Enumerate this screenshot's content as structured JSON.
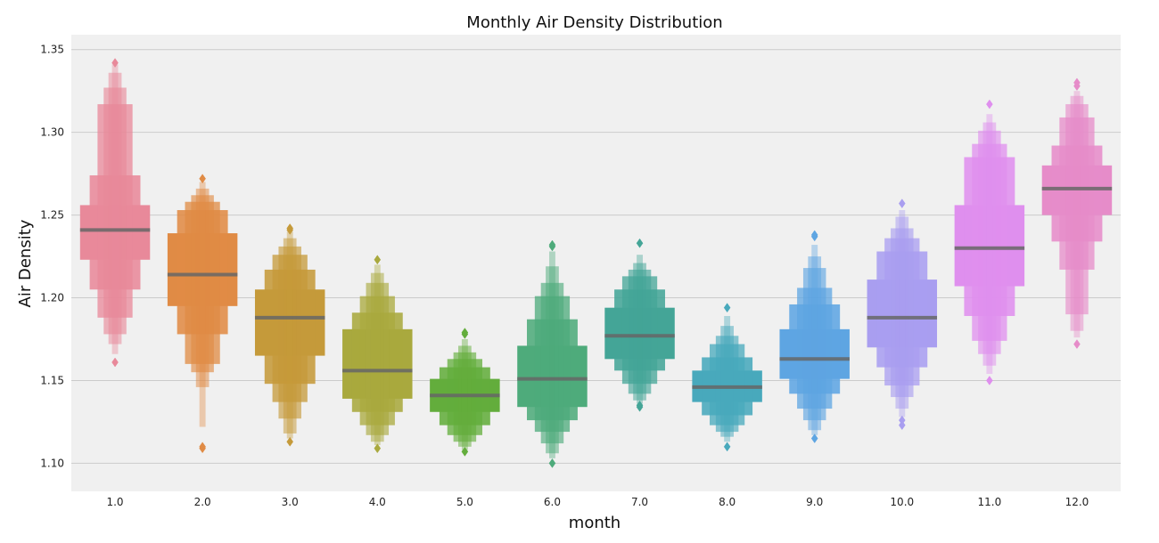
{
  "chart_data": {
    "type": "boxen",
    "title": "Monthly Air Density Distribution",
    "xlabel": "month",
    "ylabel": "Air Density",
    "ylim": [
      1.083,
      1.359
    ],
    "yticks": [
      1.1,
      1.15,
      1.2,
      1.25,
      1.3,
      1.35
    ],
    "ytick_labels": [
      "1.10",
      "1.15",
      "1.20",
      "1.25",
      "1.30",
      "1.35"
    ],
    "grid": true,
    "background": "#f0f0f0",
    "median_color": "#666666",
    "categories": [
      "1.0",
      "2.0",
      "3.0",
      "4.0",
      "5.0",
      "6.0",
      "7.0",
      "8.0",
      "9.0",
      "10.0",
      "11.0",
      "12.0"
    ],
    "series": [
      {
        "category": "1.0",
        "color": "#e8899a",
        "median": 1.241,
        "levels": [
          [
            1.223,
            1.256
          ],
          [
            1.205,
            1.274
          ],
          [
            1.188,
            1.317
          ],
          [
            1.178,
            1.327
          ],
          [
            1.172,
            1.336
          ],
          [
            1.166,
            1.341
          ]
        ],
        "outliers": [
          1.161,
          1.342
        ]
      },
      {
        "category": "2.0",
        "color": "#e08b45",
        "median": 1.214,
        "levels": [
          [
            1.195,
            1.239
          ],
          [
            1.178,
            1.253
          ],
          [
            1.16,
            1.258
          ],
          [
            1.155,
            1.262
          ],
          [
            1.146,
            1.266
          ],
          [
            1.122,
            1.27
          ]
        ],
        "outliers": [
          1.109,
          1.11,
          1.272
        ]
      },
      {
        "category": "3.0",
        "color": "#c59a3a",
        "median": 1.188,
        "levels": [
          [
            1.165,
            1.205
          ],
          [
            1.148,
            1.217
          ],
          [
            1.137,
            1.226
          ],
          [
            1.127,
            1.231
          ],
          [
            1.118,
            1.236
          ],
          [
            1.115,
            1.24
          ]
        ],
        "outliers": [
          1.113,
          1.241,
          1.242
        ]
      },
      {
        "category": "4.0",
        "color": "#a9a93e",
        "median": 1.156,
        "levels": [
          [
            1.139,
            1.181
          ],
          [
            1.131,
            1.191
          ],
          [
            1.123,
            1.201
          ],
          [
            1.117,
            1.209
          ],
          [
            1.113,
            1.215
          ],
          [
            1.111,
            1.22
          ]
        ],
        "outliers": [
          1.109,
          1.223
        ]
      },
      {
        "category": "5.0",
        "color": "#63ad3c",
        "median": 1.141,
        "levels": [
          [
            1.131,
            1.151
          ],
          [
            1.123,
            1.158
          ],
          [
            1.117,
            1.163
          ],
          [
            1.113,
            1.167
          ],
          [
            1.11,
            1.171
          ],
          [
            1.108,
            1.175
          ]
        ],
        "outliers": [
          1.107,
          1.178,
          1.179
        ]
      },
      {
        "category": "6.0",
        "color": "#4eab7b",
        "median": 1.151,
        "levels": [
          [
            1.134,
            1.171
          ],
          [
            1.126,
            1.187
          ],
          [
            1.119,
            1.201
          ],
          [
            1.112,
            1.209
          ],
          [
            1.106,
            1.219
          ],
          [
            1.103,
            1.228
          ]
        ],
        "outliers": [
          1.1,
          1.231,
          1.232
        ]
      },
      {
        "category": "7.0",
        "color": "#44a597",
        "median": 1.177,
        "levels": [
          [
            1.163,
            1.194
          ],
          [
            1.156,
            1.205
          ],
          [
            1.148,
            1.213
          ],
          [
            1.142,
            1.217
          ],
          [
            1.138,
            1.221
          ],
          [
            1.136,
            1.226
          ]
        ],
        "outliers": [
          1.134,
          1.135,
          1.233
        ]
      },
      {
        "category": "8.0",
        "color": "#48a9bc",
        "median": 1.146,
        "levels": [
          [
            1.137,
            1.156
          ],
          [
            1.129,
            1.164
          ],
          [
            1.123,
            1.172
          ],
          [
            1.119,
            1.177
          ],
          [
            1.116,
            1.183
          ],
          [
            1.113,
            1.189
          ]
        ],
        "outliers": [
          1.11,
          1.194
        ]
      },
      {
        "category": "9.0",
        "color": "#5ea5e2",
        "median": 1.163,
        "levels": [
          [
            1.151,
            1.181
          ],
          [
            1.142,
            1.196
          ],
          [
            1.133,
            1.206
          ],
          [
            1.126,
            1.218
          ],
          [
            1.12,
            1.225
          ],
          [
            1.117,
            1.232
          ]
        ],
        "outliers": [
          1.115,
          1.237,
          1.238
        ]
      },
      {
        "category": "10.0",
        "color": "#a99ef0",
        "median": 1.188,
        "levels": [
          [
            1.17,
            1.211
          ],
          [
            1.158,
            1.228
          ],
          [
            1.147,
            1.236
          ],
          [
            1.14,
            1.242
          ],
          [
            1.133,
            1.249
          ],
          [
            1.128,
            1.253
          ]
        ],
        "outliers": [
          1.123,
          1.126,
          1.257
        ]
      },
      {
        "category": "11.0",
        "color": "#df8fee",
        "median": 1.23,
        "levels": [
          [
            1.207,
            1.256
          ],
          [
            1.189,
            1.285
          ],
          [
            1.174,
            1.293
          ],
          [
            1.166,
            1.301
          ],
          [
            1.159,
            1.306
          ],
          [
            1.154,
            1.311
          ]
        ],
        "outliers": [
          1.15,
          1.317
        ]
      },
      {
        "category": "12.0",
        "color": "#e68cc9",
        "median": 1.266,
        "levels": [
          [
            1.25,
            1.28
          ],
          [
            1.234,
            1.292
          ],
          [
            1.217,
            1.309
          ],
          [
            1.19,
            1.317
          ],
          [
            1.18,
            1.322
          ],
          [
            1.176,
            1.325
          ]
        ],
        "outliers": [
          1.172,
          1.328,
          1.33
        ]
      }
    ]
  }
}
